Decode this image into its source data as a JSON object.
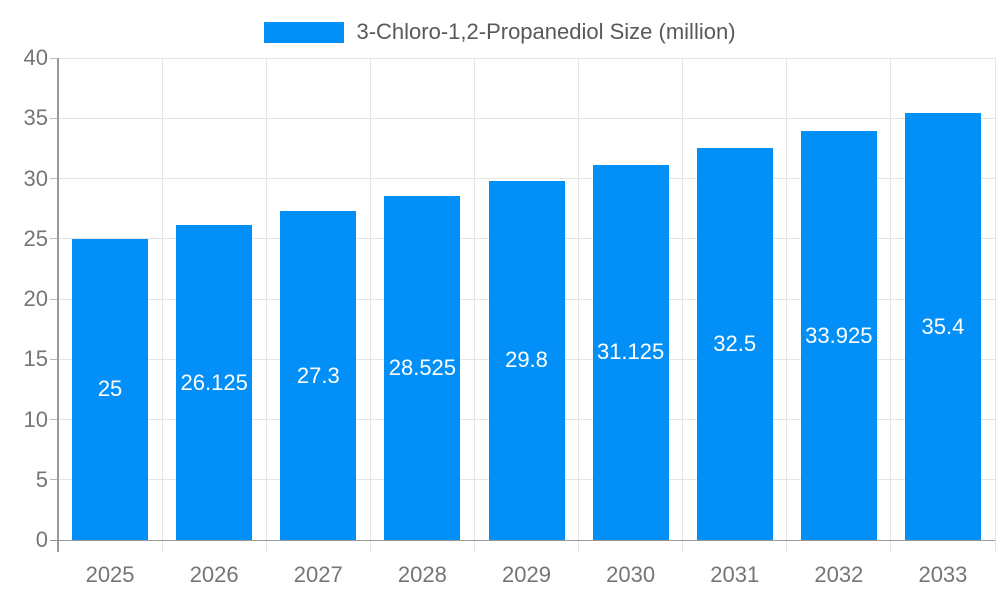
{
  "chart_data": {
    "type": "bar",
    "title": "3-Chloro-1,2-Propanediol Size (million)",
    "categories": [
      "2025",
      "2026",
      "2027",
      "2028",
      "2029",
      "2030",
      "2031",
      "2032",
      "2033"
    ],
    "series": [
      {
        "name": "3-Chloro-1,2-Propanediol Size (million)",
        "values": [
          25,
          26.125,
          27.3,
          28.525,
          29.8,
          31.125,
          32.5,
          33.925,
          35.4
        ]
      }
    ],
    "value_labels": [
      "25",
      "26.125",
      "27.3",
      "28.525",
      "29.8",
      "31.125",
      "32.5",
      "33.925",
      "35.4"
    ],
    "xlabel": "",
    "ylabel": "",
    "ylim": [
      0,
      40
    ],
    "ytick_step": 5,
    "ytick_labels": [
      "0",
      "5",
      "10",
      "15",
      "20",
      "25",
      "30",
      "35",
      "40"
    ],
    "grid": true,
    "legend_position": "top-center",
    "legend_entries": [
      "3-Chloro-1,2-Propanediol Size (million)"
    ],
    "colors": {
      "bar": "#0290f8",
      "grid": "#e5e5e5",
      "axis": "#999999",
      "y_tick": "#bbbbbb",
      "axis_text": "#757575",
      "legend_text": "#595959",
      "value_text": "#ffffff",
      "background": "#ffffff"
    }
  }
}
